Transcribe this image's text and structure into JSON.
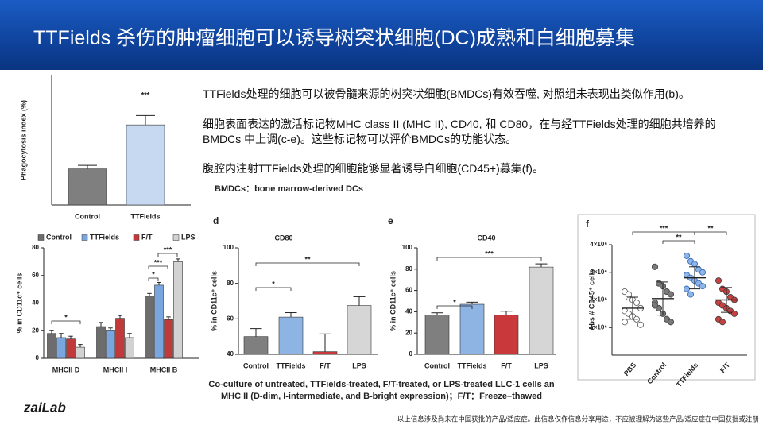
{
  "header": {
    "title": "TTFields 杀伤的肿瘤细胞可以诱导树突状细胞(DC)成熟和白细胞募集"
  },
  "paragraphs": [
    "TTFields处理的细胞可以被骨髓来源的树突状细胞(BMDCs)有效吞噬, 对照组未表现出类似作用(b)。",
    "细胞表面表达的激活标记物MHC class II (MHC II), CD40, 和 CD80，在与经TTFields处理的细胞共培养的BMDCs 中上调(c-e)。这些标记物可以评价BMDCs的功能状态。",
    "腹腔内注射TTFields处理的细胞能够显著诱导白细胞(CD45+)募集(f)。"
  ],
  "note": "BMDCs：bone marrow-derived DCs",
  "caption": [
    "Co-culture of untreated, TTFields-treated, F/T-treated, or LPS-treated LLC-1 cells an",
    "MHC II (D-dim, I-intermediate, and B-bright expression)；F/T：Freeze–thawed"
  ],
  "logo": "zaiLab",
  "footer": "以上信息涉及尚未在中国获批的产品/适应症。此信息仅作信息分享用途，不应被理解为这些产品/适应症在中国获批或注册",
  "chart_data": [
    {
      "type": "bar",
      "ylabel": "Phagocytosis index (%)",
      "categories": [
        "Control",
        "TTFields"
      ],
      "values": [
        8.9,
        19.8
      ],
      "errors": [
        0.9,
        2.3
      ],
      "colors": [
        "#7f7f7f",
        "#c6d9f1"
      ],
      "ylim": [
        0,
        32
      ],
      "annotations": [
        "***"
      ]
    },
    {
      "type": "bar",
      "ylabel": "% in CD11c⁺ cells",
      "categories": [
        "MHCII D",
        "MHCII I",
        "MHCII B"
      ],
      "series": [
        {
          "name": "Control",
          "color": "#6d6d6d",
          "values": [
            18,
            23,
            45
          ],
          "errors": [
            2,
            3,
            2
          ]
        },
        {
          "name": "TTFields",
          "color": "#7aa6e0",
          "values": [
            15,
            20,
            53
          ],
          "errors": [
            3,
            2,
            2
          ]
        },
        {
          "name": "F/T",
          "color": "#c0393b",
          "values": [
            14,
            29,
            28
          ],
          "errors": [
            2,
            2,
            2
          ]
        },
        {
          "name": "LPS",
          "color": "#d2d2d2",
          "values": [
            8,
            15,
            70
          ],
          "errors": [
            2,
            3,
            2
          ]
        }
      ],
      "ylim": [
        0,
        80
      ],
      "yticks": [
        0,
        20,
        40,
        60,
        80
      ],
      "annotations": [
        "*",
        "*",
        "***",
        "***"
      ]
    },
    {
      "type": "bar",
      "panel": "d",
      "title": "CD80",
      "ylabel": "% in CD11c⁺ cells",
      "categories": [
        "Control",
        "TTFields",
        "F/T",
        "LPS"
      ],
      "values": [
        50,
        61,
        41.5,
        67.5
      ],
      "errors": [
        4.5,
        2.5,
        10,
        5
      ],
      "colors": [
        "#7f7f7f",
        "#8eb4e3",
        "#c9393c",
        "#d6d6d6"
      ],
      "ylim": [
        40,
        100
      ],
      "yticks": [
        40,
        60,
        80,
        100
      ],
      "annotations": [
        "*",
        "**"
      ]
    },
    {
      "type": "bar",
      "panel": "e",
      "title": "CD40",
      "ylabel": "% in CD11c⁺ cells",
      "categories": [
        "Control",
        "TTFields",
        "F/T",
        "LPS"
      ],
      "values": [
        37,
        47,
        37,
        82
      ],
      "errors": [
        2,
        2,
        3.5,
        3
      ],
      "colors": [
        "#7f7f7f",
        "#8eb4e3",
        "#c9393c",
        "#d6d6d6"
      ],
      "ylim": [
        0,
        100
      ],
      "yticks": [
        0,
        20,
        40,
        60,
        80,
        100
      ],
      "annotations": [
        "*",
        "***"
      ]
    },
    {
      "type": "dot",
      "panel": "f",
      "ylabel": "Abs # CD45⁺ cells",
      "categories": [
        "PBS",
        "Control",
        "TTFields",
        "F/T"
      ],
      "colors": [
        "#ffffff",
        "#7a7a7a",
        "#8fb4e6",
        "#c94040"
      ],
      "points": [
        [
          2300000,
          2100000,
          2000000,
          1900000,
          1700000,
          1600000,
          1500000,
          1400000,
          1300000,
          1100000,
          1200000,
          2200000
        ],
        [
          3200000,
          2600000,
          2500000,
          2300000,
          2200000,
          1900000,
          1700000,
          1500000,
          1300000,
          1200000,
          1800000
        ],
        [
          3600000,
          3400000,
          3300000,
          3100000,
          3000000,
          2900000,
          2800000,
          2700000,
          2600000,
          2500000,
          2400000,
          2200000
        ],
        [
          2700000,
          2400000,
          2300000,
          2100000,
          2000000,
          1900000,
          1800000,
          1700000,
          1600000,
          1500000,
          1300000,
          1200000
        ]
      ],
      "means": [
        1700000,
        2050000,
        2800000,
        2000000
      ],
      "sds": [
        400000,
        600000,
        400000,
        450000
      ],
      "ylim": [
        0,
        4000000
      ],
      "yticks": [
        {
          "value": 1000000,
          "label": "1×10⁶"
        },
        {
          "value": 2000000,
          "label": "2×10⁶"
        },
        {
          "value": 3000000,
          "label": "3×10⁶"
        },
        {
          "value": 4000000,
          "label": "4×10⁶"
        }
      ],
      "annotations": [
        "***",
        "**",
        "**"
      ]
    }
  ]
}
